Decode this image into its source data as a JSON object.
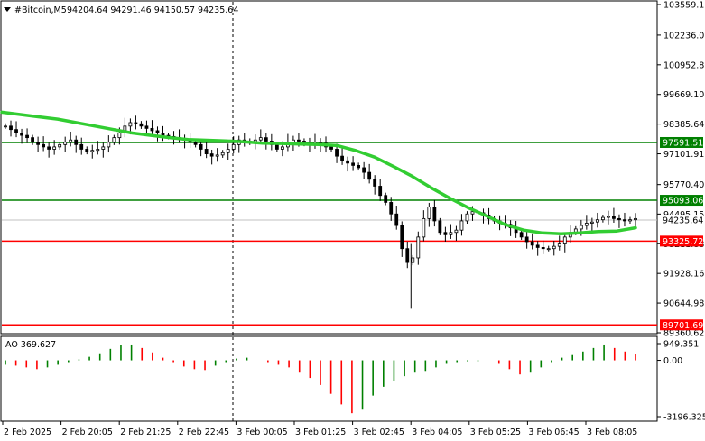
{
  "header": {
    "symbol": "#Bitcoin,M5",
    "ohlc": "94204.64 94291.46 94150.57 94235.64"
  },
  "indicator": {
    "label": "AO 369.627",
    "axis_ticks": [
      "949.351",
      "0.00",
      "-3196.325"
    ],
    "axis_values": [
      949.351,
      0,
      -3196.325
    ]
  },
  "colors": {
    "candles": "#000000",
    "ma_line": "#32cd32",
    "support_line": "#ff0000",
    "resistance_line": "#008000",
    "ao_up": "#008000",
    "ao_down": "#ff0000",
    "grid": "#c0c0c0"
  },
  "price_axis": {
    "ticks": [
      "103559.10",
      "102236.06",
      "100952.80",
      "99669.10",
      "98385.64",
      "97101.91",
      "95770.40",
      "94495.15",
      "93211.88",
      "91928.16",
      "90644.98",
      "89360.62"
    ],
    "tick_values": [
      103559.1,
      102236.06,
      100952.8,
      99669.1,
      98385.64,
      97101.91,
      95770.4,
      94495.15,
      93211.88,
      91928.16,
      90644.98,
      89360.62
    ]
  },
  "current_price": {
    "label": "94235.64",
    "value": 94235.64
  },
  "levels": [
    {
      "label": "97591.51",
      "value": 97591.51,
      "color": "#008000"
    },
    {
      "label": "95093.06",
      "value": 95093.06,
      "color": "#008000"
    },
    {
      "label": "93325.72",
      "value": 93325.72,
      "color": "#ff0000"
    },
    {
      "label": "89701.69",
      "value": 89701.69,
      "color": "#ff0000"
    }
  ],
  "time_axis": {
    "labels": [
      "2 Feb 2025",
      "2 Feb 20:05",
      "2 Feb 21:25",
      "2 Feb 22:45",
      "3 Feb 00:05",
      "3 Feb 01:25",
      "3 Feb 02:45",
      "3 Feb 04:05",
      "3 Feb 05:25",
      "3 Feb 06:45",
      "3 Feb 08:05"
    ]
  },
  "chart_data": {
    "type": "candlestick",
    "timeframe": "M5",
    "symbol": "#Bitcoin",
    "ylim": [
      89360.62,
      103559.1
    ],
    "x_ticks": [
      "2 Feb 2025",
      "2 Feb 20:05",
      "2 Feb 21:25",
      "2 Feb 22:45",
      "3 Feb 00:05",
      "3 Feb 01:25",
      "3 Feb 02:45",
      "3 Feb 04:05",
      "3 Feb 05:25",
      "3 Feb 06:45",
      "3 Feb 08:05"
    ],
    "close_series": [
      98300,
      98150,
      98000,
      97900,
      97800,
      97600,
      97500,
      97400,
      97300,
      97400,
      97500,
      97600,
      97700,
      97500,
      97300,
      97200,
      97250,
      97300,
      97400,
      97600,
      97800,
      98000,
      98300,
      98450,
      98400,
      98300,
      98200,
      98100,
      98000,
      97900,
      97850,
      97800,
      97750,
      97700,
      97600,
      97500,
      97300,
      97100,
      97000,
      97050,
      97150,
      97300,
      97500,
      97700,
      97650,
      97600,
      97700,
      97800,
      97650,
      97500,
      97300,
      97400,
      97600,
      97700,
      97650,
      97550,
      97500,
      97600,
      97550,
      97400,
      97300,
      97000,
      96800,
      96700,
      96600,
      96500,
      96300,
      96000,
      95700,
      95300,
      95000,
      94500,
      94000,
      93000,
      92400,
      92600,
      93500,
      94300,
      94800,
      94200,
      93700,
      93600,
      93700,
      93800,
      94200,
      94500,
      94600,
      94550,
      94450,
      94300,
      94200,
      94100,
      94050,
      93900,
      93700,
      93500,
      93300,
      93150,
      93050,
      93000,
      93000,
      93100,
      93200,
      93500,
      93700,
      93850,
      94000,
      94100,
      94150,
      94250,
      94350,
      94400,
      94300,
      94250,
      94200,
      94250,
      94300
    ],
    "moving_average": [
      98900,
      98800,
      98700,
      98600,
      98450,
      98300,
      98150,
      98000,
      97900,
      97800,
      97720,
      97690,
      97660,
      97620,
      97560,
      97550,
      97520,
      97500,
      97460,
      97240,
      96960,
      96560,
      96140,
      95650,
      95200,
      94780,
      94420,
      94040,
      93800,
      93680,
      93640,
      93680,
      93740,
      93760,
      93900
    ],
    "ao_values": [
      -250,
      -300,
      -400,
      -500,
      -400,
      -250,
      -100,
      50,
      200,
      400,
      650,
      850,
      900,
      700,
      450,
      150,
      -100,
      -350,
      -500,
      -550,
      -300,
      -100,
      100,
      150,
      0,
      -100,
      -250,
      -400,
      -700,
      -1000,
      -1400,
      -1900,
      -2500,
      -3000,
      -2800,
      -2000,
      -1500,
      -1200,
      -900,
      -700,
      -600,
      -400,
      -200,
      -100,
      -50,
      -50,
      0,
      -200,
      -500,
      -800,
      -700,
      -400,
      -100,
      150,
      300,
      500,
      700,
      900,
      700,
      500,
      369.627
    ]
  }
}
